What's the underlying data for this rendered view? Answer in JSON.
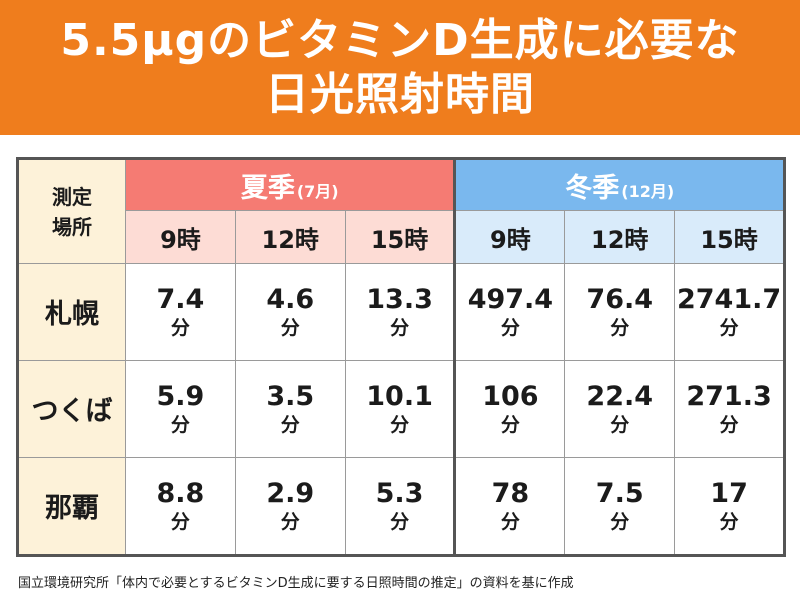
{
  "title": {
    "line1": "5.5μgのビタミンD生成に必要な",
    "line2": "日光照射時間"
  },
  "colors": {
    "banner": "#ef7d1d",
    "summer_header": "#f57b73",
    "summer_time_bg": "#fddcd5",
    "winter_header": "#7ab8ee",
    "winter_time_bg": "#d9ebfa",
    "place_bg": "#fdf2d9"
  },
  "table": {
    "corner_label_line1": "測定",
    "corner_label_line2": "場所",
    "summer": {
      "label": "夏季",
      "sub": "(7月)"
    },
    "winter": {
      "label": "冬季",
      "sub": "(12月)"
    },
    "unit": "分"
  },
  "chart_data": {
    "type": "table",
    "title": "5.5μgのビタミンD生成に必要な日光照射時間",
    "columns": [
      {
        "season": "夏季",
        "time": "9時"
      },
      {
        "season": "夏季",
        "time": "12時"
      },
      {
        "season": "夏季",
        "time": "15時"
      },
      {
        "season": "冬季",
        "time": "9時"
      },
      {
        "season": "冬季",
        "time": "12時"
      },
      {
        "season": "冬季",
        "time": "15時"
      }
    ],
    "rows": [
      {
        "place": "札幌",
        "values": [
          "7.4",
          "4.6",
          "13.3",
          "497.4",
          "76.4",
          "2741.7"
        ]
      },
      {
        "place": "つくば",
        "values": [
          "5.9",
          "3.5",
          "10.1",
          "106",
          "22.4",
          "271.3"
        ]
      },
      {
        "place": "那覇",
        "values": [
          "8.8",
          "2.9",
          "5.3",
          "78",
          "7.5",
          "17"
        ]
      }
    ],
    "unit": "分"
  },
  "source": "国立環境研究所「体内で必要とするビタミンD生成に要する日照時間の推定」の資料を基に作成"
}
